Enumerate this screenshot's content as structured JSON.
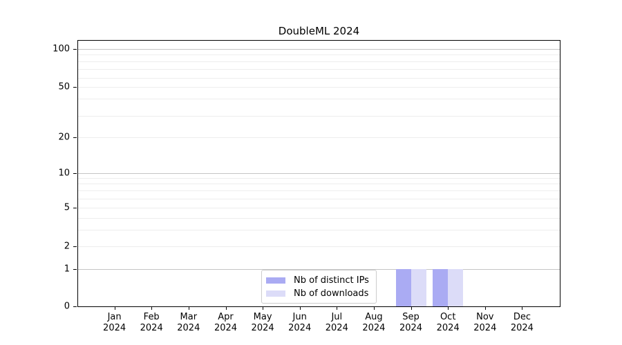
{
  "figure": {
    "background": "#ffffff"
  },
  "chart_data": {
    "type": "bar",
    "title": "DoubleML 2024",
    "categories": [
      "Jan",
      "Feb",
      "Mar",
      "Apr",
      "May",
      "Jun",
      "Jul",
      "Aug",
      "Sep",
      "Oct",
      "Nov",
      "Dec"
    ],
    "year_label": "2024",
    "series": [
      {
        "name": "Nb of distinct IPs",
        "color": "#aaabf3",
        "values": [
          0,
          0,
          0,
          0,
          0,
          0,
          0,
          0,
          1,
          1,
          0,
          0
        ]
      },
      {
        "name": "Nb of downloads",
        "color": "#dcdcf8",
        "values": [
          0,
          0,
          0,
          0,
          0,
          0,
          0,
          0,
          1,
          1,
          0,
          0
        ]
      }
    ],
    "xlabel": "",
    "ylabel": "",
    "yticks": [
      0,
      1,
      2,
      5,
      10,
      20,
      50,
      100
    ],
    "ytick_labels": [
      "0",
      "1",
      "2",
      "5",
      "10",
      "20",
      "50",
      "100"
    ],
    "ylim": [
      0,
      115
    ],
    "yscale": "log-like with linear 0-1 segment",
    "grid": "horizontal only",
    "legend_position": "inside lower-center"
  },
  "colors": {
    "grid_minor": "#ededed",
    "grid_decade": "#c4c4c4",
    "axis": "#000000",
    "text": "#000000",
    "legend_border": "#cccccc",
    "legend_background": "#ffffff"
  }
}
